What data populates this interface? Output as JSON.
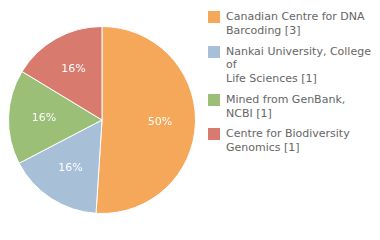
{
  "chart_data": {
    "type": "pie",
    "categories": [
      "Canadian Centre for DNA\nBarcoding [3]",
      "Nankai University, College of\nLife Sciences [1]",
      "Mined from GenBank, NCBI [1]",
      "Centre for Biodiversity\nGenomics [1]"
    ],
    "values": [
      50,
      16,
      16,
      16
    ],
    "value_labels": [
      "50%",
      "16%",
      "16%",
      "16%"
    ],
    "colors": [
      "#F5A85A",
      "#A8BFD8",
      "#9BBF77",
      "#D97A6E"
    ],
    "data_labels": true,
    "legend": "upper right"
  }
}
